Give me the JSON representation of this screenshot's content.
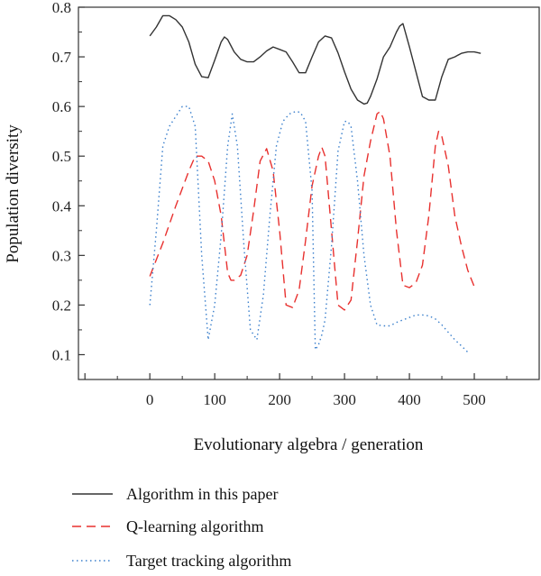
{
  "chart_data": {
    "type": "line",
    "xlabel": "Evolutionary algebra / generation",
    "ylabel": "Population diversity",
    "xlim": [
      -110,
      600
    ],
    "ylim": [
      0.05,
      0.8
    ],
    "xticks": [
      0,
      100,
      200,
      300,
      400,
      500
    ],
    "yticks": [
      0.1,
      0.2,
      0.3,
      0.4,
      0.5,
      0.6,
      0.7,
      0.8
    ],
    "grid": false,
    "legend_position": "bottom",
    "series": [
      {
        "name": "Algorithm in this paper",
        "color": "#333333",
        "style": "solid",
        "x": [
          0,
          10,
          20,
          30,
          40,
          50,
          60,
          70,
          80,
          90,
          100,
          110,
          115,
          120,
          130,
          140,
          150,
          160,
          170,
          180,
          190,
          200,
          210,
          220,
          230,
          240,
          250,
          260,
          270,
          280,
          290,
          300,
          310,
          320,
          330,
          335,
          340,
          350,
          360,
          370,
          380,
          385,
          390,
          400,
          410,
          420,
          430,
          440,
          450,
          460,
          470,
          480,
          490,
          500,
          510
        ],
        "y": [
          0.742,
          0.76,
          0.783,
          0.783,
          0.775,
          0.76,
          0.73,
          0.685,
          0.66,
          0.658,
          0.693,
          0.73,
          0.74,
          0.735,
          0.71,
          0.695,
          0.69,
          0.69,
          0.7,
          0.712,
          0.72,
          0.715,
          0.71,
          0.69,
          0.668,
          0.668,
          0.7,
          0.73,
          0.742,
          0.738,
          0.708,
          0.67,
          0.635,
          0.613,
          0.605,
          0.607,
          0.62,
          0.655,
          0.7,
          0.72,
          0.75,
          0.762,
          0.767,
          0.72,
          0.67,
          0.62,
          0.613,
          0.613,
          0.66,
          0.695,
          0.7,
          0.707,
          0.71,
          0.71,
          0.707
        ]
      },
      {
        "name": "Q-learning algorithm",
        "color": "#e8312f",
        "style": "dashed",
        "x": [
          0,
          20,
          40,
          60,
          70,
          80,
          90,
          100,
          110,
          120,
          125,
          130,
          140,
          150,
          160,
          170,
          180,
          190,
          200,
          210,
          220,
          230,
          240,
          250,
          260,
          265,
          270,
          280,
          290,
          300,
          310,
          320,
          330,
          340,
          350,
          355,
          360,
          370,
          380,
          390,
          400,
          410,
          420,
          430,
          440,
          445,
          450,
          460,
          470,
          480,
          490,
          500
        ],
        "y": [
          0.258,
          0.325,
          0.4,
          0.47,
          0.5,
          0.5,
          0.49,
          0.45,
          0.38,
          0.265,
          0.25,
          0.25,
          0.26,
          0.3,
          0.39,
          0.49,
          0.515,
          0.47,
          0.35,
          0.2,
          0.195,
          0.23,
          0.33,
          0.44,
          0.5,
          0.518,
          0.5,
          0.35,
          0.2,
          0.19,
          0.21,
          0.33,
          0.46,
          0.53,
          0.585,
          0.59,
          0.575,
          0.5,
          0.35,
          0.24,
          0.235,
          0.245,
          0.28,
          0.38,
          0.52,
          0.55,
          0.54,
          0.48,
          0.38,
          0.32,
          0.27,
          0.237
        ]
      },
      {
        "name": "Target tracking algorithm",
        "color": "#3a7fcc",
        "style": "dotted",
        "x": [
          0,
          10,
          20,
          30,
          40,
          50,
          55,
          60,
          70,
          80,
          90,
          100,
          110,
          120,
          127,
          135,
          145,
          155,
          165,
          175,
          185,
          195,
          205,
          215,
          225,
          232,
          240,
          250,
          255,
          260,
          265,
          270,
          280,
          290,
          300,
          305,
          310,
          320,
          330,
          340,
          350,
          360,
          370,
          380,
          390,
          400,
          410,
          420,
          430,
          440,
          450,
          460,
          470,
          480,
          490
        ],
        "y": [
          0.2,
          0.35,
          0.52,
          0.56,
          0.58,
          0.6,
          0.6,
          0.6,
          0.56,
          0.3,
          0.13,
          0.2,
          0.34,
          0.52,
          0.585,
          0.52,
          0.32,
          0.15,
          0.13,
          0.22,
          0.38,
          0.52,
          0.57,
          0.585,
          0.59,
          0.588,
          0.57,
          0.43,
          0.11,
          0.12,
          0.14,
          0.17,
          0.32,
          0.51,
          0.57,
          0.57,
          0.56,
          0.45,
          0.3,
          0.2,
          0.16,
          0.158,
          0.158,
          0.165,
          0.17,
          0.175,
          0.18,
          0.18,
          0.178,
          0.172,
          0.16,
          0.145,
          0.13,
          0.118,
          0.105
        ]
      }
    ]
  }
}
